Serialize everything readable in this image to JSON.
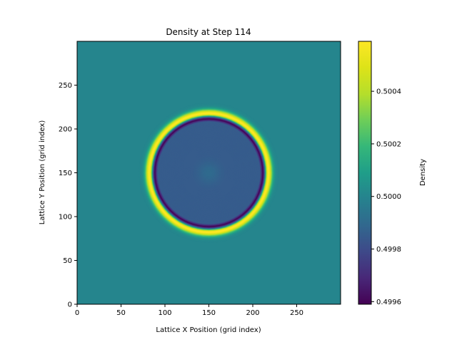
{
  "chart_data": {
    "type": "heatmap",
    "title": "Density at Step 114",
    "xlabel": "Lattice X Position (grid index)",
    "ylabel": "Lattice Y Position (grid index)",
    "xlim": [
      0,
      300
    ],
    "ylim": [
      0,
      300
    ],
    "xticks": [
      0,
      50,
      100,
      150,
      200,
      250
    ],
    "yticks": [
      0,
      50,
      100,
      150,
      200,
      250
    ],
    "colorbar": {
      "label": "Density",
      "colormap": "viridis",
      "range": [
        0.49959,
        0.50059
      ],
      "ticks": [
        "0.4996",
        "0.4998",
        "0.5000",
        "0.5002",
        "0.5004"
      ],
      "tick_values": [
        0.4996,
        0.4998,
        0.5,
        0.5002,
        0.5004
      ]
    },
    "field": {
      "background_density": 0.5,
      "center": [
        150,
        150
      ],
      "interior_density": 0.49985,
      "trough_radius": 61.5,
      "trough_density": 0.4996,
      "peak_radius": 68,
      "peak_density": 0.50059
    }
  }
}
